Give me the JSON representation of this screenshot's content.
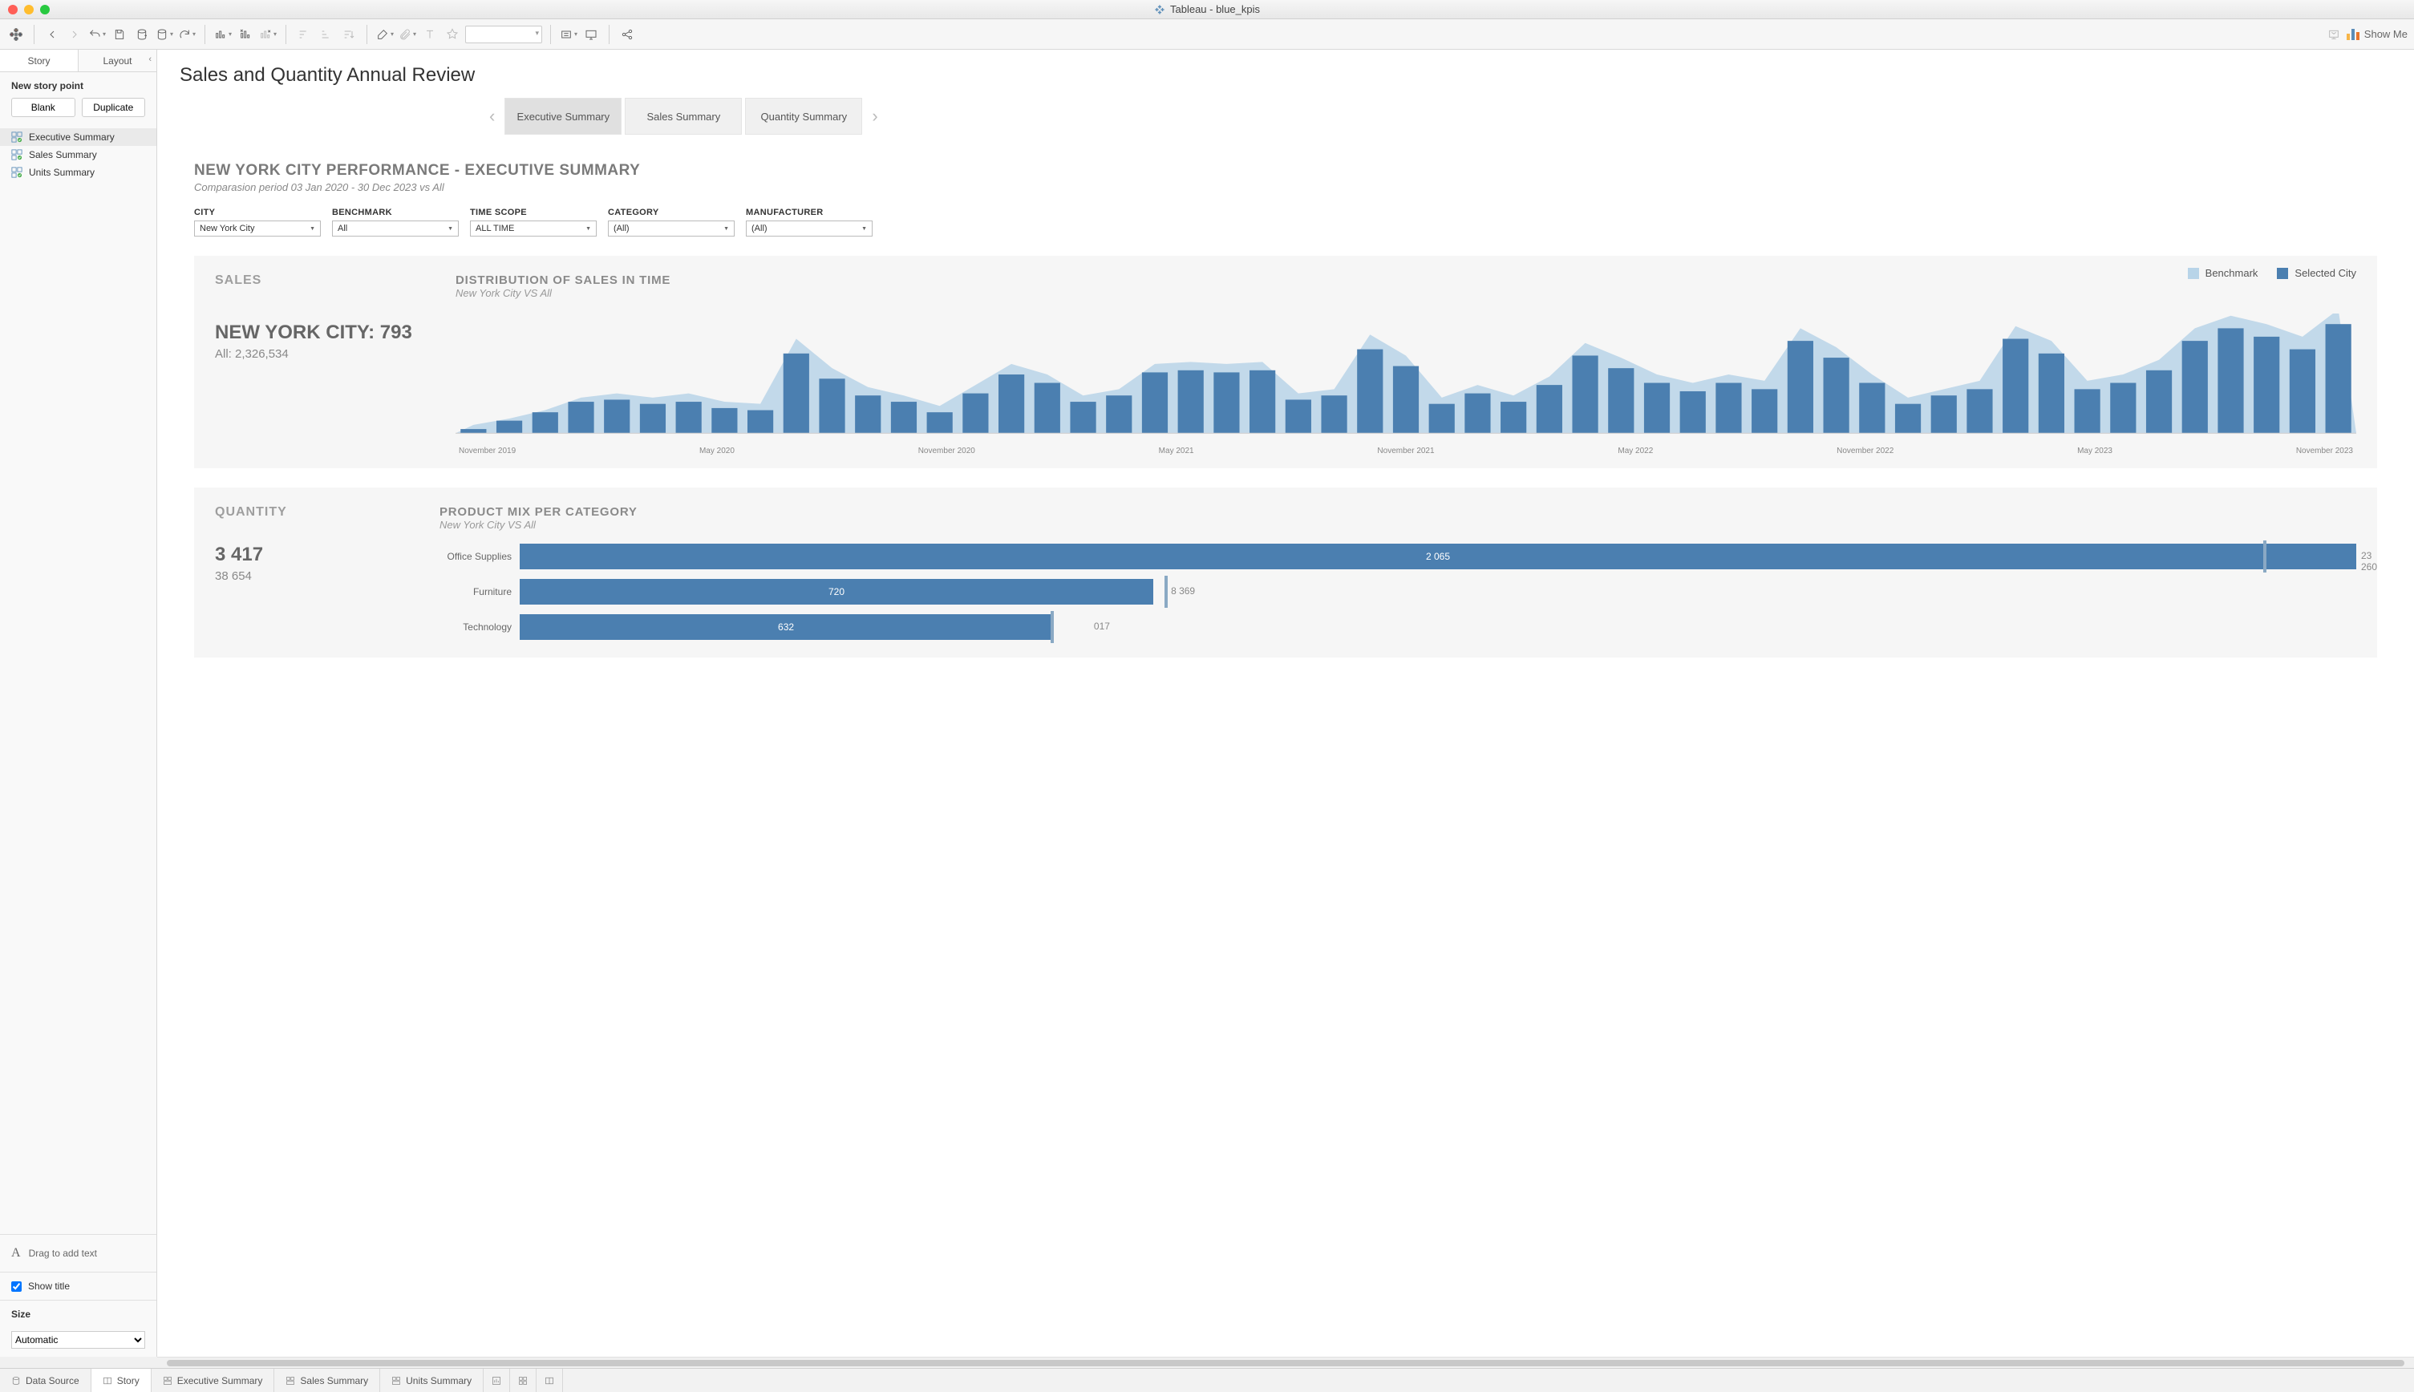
{
  "window": {
    "title": "Tableau - blue_kpis"
  },
  "toolbar": {
    "showme_label": "Show Me"
  },
  "leftpanel": {
    "tabs": {
      "story": "Story",
      "layout": "Layout"
    },
    "new_story_heading": "New story point",
    "blank_btn": "Blank",
    "duplicate_btn": "Duplicate",
    "items": [
      {
        "label": "Executive Summary"
      },
      {
        "label": "Sales Summary"
      },
      {
        "label": "Units Summary"
      }
    ],
    "drag_text": "Drag to add text",
    "show_title_label": "Show title",
    "show_title_checked": true,
    "size_heading": "Size",
    "size_value": "Automatic"
  },
  "canvas": {
    "title": "Sales and Quantity Annual Review",
    "story_points": [
      {
        "label": "Executive Summary",
        "active": true
      },
      {
        "label": "Sales Summary",
        "active": false
      },
      {
        "label": "Quantity Summary",
        "active": false
      }
    ]
  },
  "dashboard": {
    "title": "NEW YORK CITY PERFORMANCE - EXECUTIVE SUMMARY",
    "subtitle": "Comparasion period 03 Jan 2020 - 30 Dec 2023 vs All",
    "filters": [
      {
        "label": "CITY",
        "value": "New York City"
      },
      {
        "label": "BENCHMARK",
        "value": "All"
      },
      {
        "label": "TIME SCOPE",
        "value": "ALL TIME"
      },
      {
        "label": "CATEGORY",
        "value": "(All)"
      },
      {
        "label": "MANUFACTURER",
        "value": "(All)"
      }
    ],
    "legend": {
      "benchmark": {
        "label": "Benchmark",
        "color": "#b8d4e8"
      },
      "selected": {
        "label": "Selected City",
        "color": "#4b7fb0"
      }
    },
    "sales_card": {
      "heading": "SALES",
      "kpi_line1": "NEW YORK CITY: 793",
      "kpi_line2": "All: 2,326,534",
      "chart_title": "DISTRIBUTION OF SALES IN TIME",
      "chart_sub": "New York City VS All",
      "chart": {
        "type": "bar+area",
        "bar_color": "#4b7fb0",
        "area_color": "#b8d4e8",
        "background": "#f6f6f6",
        "axis_color": "#cfcfcf",
        "ylim": [
          0,
          110
        ],
        "x_labels": [
          "November 2019",
          "May 2020",
          "November 2020",
          "May 2021",
          "November 2021",
          "May 2022",
          "November 2022",
          "May 2023",
          "November 2023"
        ],
        "bars": [
          4,
          12,
          20,
          30,
          32,
          28,
          30,
          24,
          22,
          76,
          52,
          36,
          30,
          20,
          38,
          56,
          48,
          30,
          36,
          58,
          60,
          58,
          60,
          32,
          36,
          80,
          64,
          28,
          38,
          30,
          46,
          74,
          62,
          48,
          40,
          48,
          42,
          88,
          72,
          48,
          28,
          36,
          42,
          90,
          76,
          42,
          48,
          60,
          88,
          100,
          92,
          80,
          104
        ],
        "benchmark": [
          8,
          14,
          22,
          34,
          38,
          34,
          38,
          30,
          28,
          90,
          62,
          44,
          36,
          26,
          46,
          66,
          56,
          36,
          42,
          66,
          68,
          66,
          68,
          38,
          42,
          94,
          74,
          34,
          46,
          36,
          54,
          86,
          72,
          56,
          48,
          56,
          50,
          100,
          82,
          56,
          34,
          42,
          50,
          102,
          88,
          50,
          56,
          70,
          100,
          112,
          104,
          92,
          118
        ]
      }
    },
    "quantity_card": {
      "heading": "QUANTITY",
      "kpi_line1": "3 417",
      "kpi_line2": "38 654",
      "chart_title": "PRODUCT MIX PER CATEGORY",
      "chart_sub": "New York City VS All",
      "chart": {
        "type": "hbar",
        "bar_color": "#4b7fb0",
        "mark_color": "#8aa9c4",
        "max": 2900,
        "rows": [
          {
            "label": "Office Supplies",
            "value": 2065,
            "value_display": "2 065",
            "value_pct": 100,
            "benchmark_pct": 95,
            "out_label": "23 260",
            "out_pct": 100
          },
          {
            "label": "Furniture",
            "value": 720,
            "value_display": "720",
            "value_pct": 34.5,
            "benchmark_pct": 35.2,
            "out_label": "8 369",
            "out_pct": 35.2
          },
          {
            "label": "Technology",
            "value": 632,
            "value_display": "632",
            "value_pct": 29,
            "benchmark_pct": 29,
            "out_label": "017",
            "out_pct": 31
          }
        ]
      }
    }
  },
  "bottombar": {
    "data_source": "Data Source",
    "tabs": [
      {
        "label": "Story",
        "icon": "story",
        "active": true
      },
      {
        "label": "Executive Summary",
        "icon": "dash"
      },
      {
        "label": "Sales Summary",
        "icon": "dash"
      },
      {
        "label": "Units Summary",
        "icon": "dash"
      }
    ]
  },
  "colors": {
    "accent_blue": "#4b7fb0",
    "bench_blue": "#b8d4e8",
    "grey_text": "#7a7a7a"
  }
}
